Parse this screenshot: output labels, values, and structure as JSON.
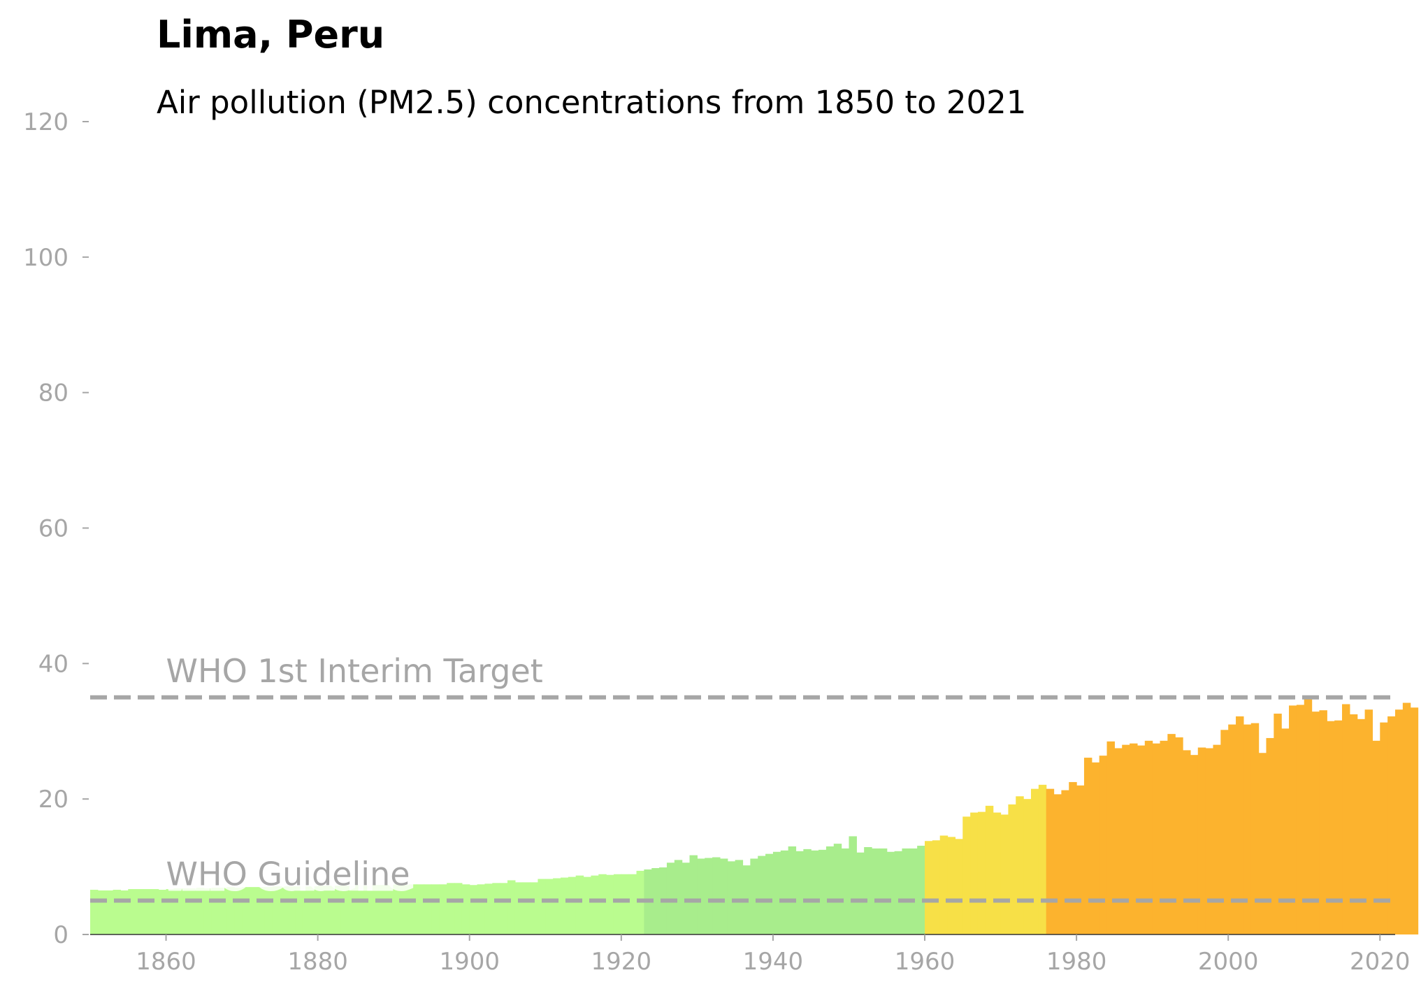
{
  "chart_data": {
    "type": "bar",
    "title": "Lima, Peru",
    "subtitle": "Air pollution (PM2.5) concentrations from 1850 to 2021",
    "xlabel": "",
    "ylabel": "",
    "x_start": 1850,
    "x_end": 2021,
    "xlim": [
      1850,
      2022
    ],
    "ylim": [
      0,
      120
    ],
    "x_ticks": [
      1860,
      1880,
      1900,
      1920,
      1940,
      1960,
      1980,
      2000,
      2020
    ],
    "y_ticks": [
      0,
      20,
      40,
      60,
      80,
      100,
      120
    ],
    "grid": false,
    "legend": "none",
    "reference_lines": [
      {
        "label": "WHO 1st Interim Target",
        "value": 35,
        "color": "#a6a6a6"
      },
      {
        "label": "WHO Guideline",
        "value": 5,
        "color": "#a6a6a6"
      }
    ],
    "color_bands": [
      {
        "from": 1850,
        "to": 1922,
        "color": "#bafc8f"
      },
      {
        "from": 1923,
        "to": 1959,
        "color": "#a8ed8c"
      },
      {
        "from": 1960,
        "to": 1975,
        "color": "#f7e047"
      },
      {
        "from": 1976,
        "to": 2021,
        "color": "#fcb32e"
      }
    ],
    "values": [
      6.6,
      6.5,
      6.5,
      6.6,
      6.5,
      6.7,
      6.7,
      6.7,
      6.7,
      6.6,
      6.7,
      6.8,
      6.8,
      6.8,
      6.9,
      6.8,
      6.9,
      6.9,
      7.0,
      6.9,
      7.0,
      7.0,
      7.0,
      7.0,
      7.1,
      7.1,
      7.1,
      7.1,
      7.1,
      7.1,
      7.2,
      7.2,
      7.2,
      7.2,
      7.2,
      7.3,
      7.2,
      7.3,
      7.3,
      7.3,
      7.4,
      7.3,
      7.4,
      7.4,
      7.4,
      7.4,
      7.4,
      7.6,
      7.6,
      7.4,
      7.3,
      7.4,
      7.5,
      7.6,
      7.6,
      8.0,
      7.7,
      7.7,
      7.7,
      8.2,
      8.2,
      8.3,
      8.4,
      8.5,
      8.7,
      8.5,
      8.7,
      8.9,
      8.8,
      8.9,
      8.9,
      8.9,
      9.4,
      9.6,
      9.8,
      9.9,
      10.6,
      11.0,
      10.6,
      11.7,
      11.2,
      11.3,
      11.4,
      11.2,
      10.8,
      11.0,
      10.2,
      11.2,
      11.6,
      11.9,
      12.2,
      12.4,
      13.0,
      12.3,
      12.6,
      12.4,
      12.5,
      13.0,
      13.4,
      12.7,
      14.5,
      12.1,
      12.9,
      12.7,
      12.7,
      12.2,
      12.3,
      12.7,
      12.7,
      13.1,
      13.8,
      13.9,
      14.6,
      14.4,
      14.1,
      17.4,
      18.0,
      18.1,
      19.0,
      18.0,
      17.7,
      19.2,
      20.4,
      20.0,
      21.5,
      22.1,
      21.5,
      20.7,
      21.3,
      22.5,
      22.0,
      26.1,
      25.4,
      26.4,
      28.5,
      27.5,
      28.0,
      28.2,
      27.9,
      28.6,
      28.2,
      28.6,
      29.6,
      29.1,
      27.2,
      26.5,
      27.6,
      27.5,
      28.0,
      30.2,
      31.0,
      32.2,
      31.0,
      31.2,
      26.8,
      29.0,
      32.6,
      30.4,
      33.8,
      33.9,
      34.9,
      32.9,
      33.1,
      31.5,
      31.6,
      34.0,
      32.5,
      31.8,
      33.2,
      28.6,
      31.3,
      32.2,
      33.2,
      34.2,
      33.5
    ]
  }
}
